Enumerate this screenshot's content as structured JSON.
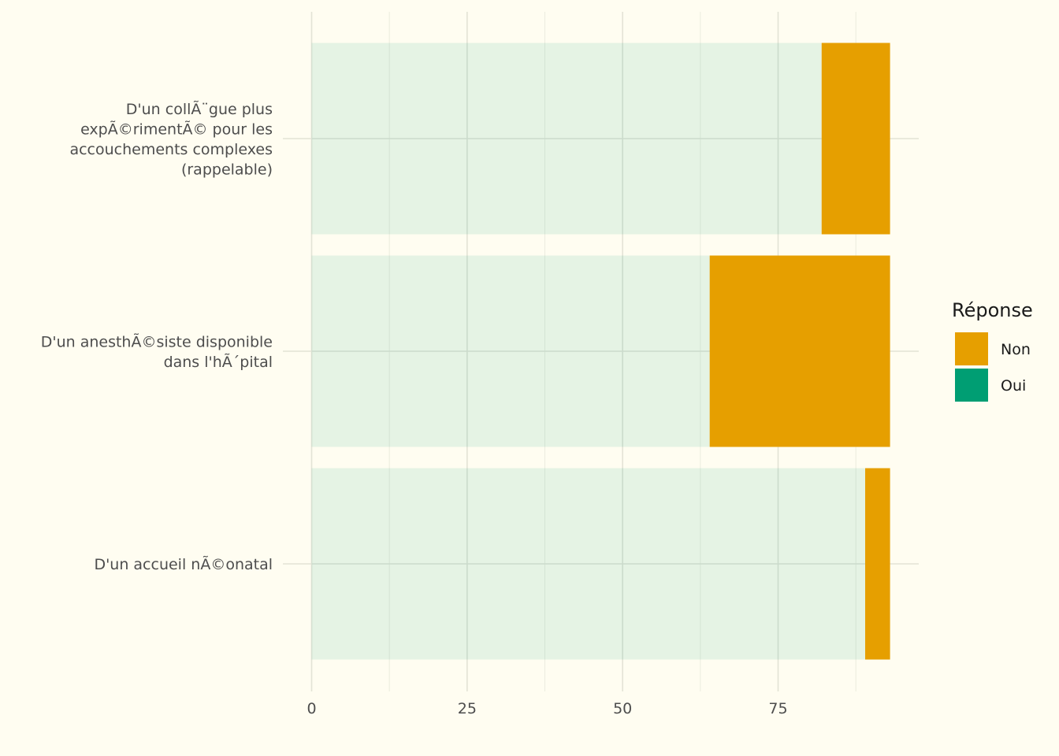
{
  "chart_data": {
    "type": "bar",
    "orientation": "horizontal",
    "stacked": true,
    "categories": [
      "D'un collÃ¨gue plus\nexpÃ©rimentÃ© pour les\naccouchements complexes\n(rappelable)",
      "D'un anesthÃ©siste disponible\ndans l'hÃ´pital",
      "D'un accueil nÃ©onatal"
    ],
    "series": [
      {
        "name": "Oui",
        "color": "#009e73",
        "opacity": 0.1,
        "values": [
          82,
          64,
          89
        ]
      },
      {
        "name": "Non",
        "color": "#e69f00",
        "opacity": 1,
        "values": [
          11,
          29,
          4
        ]
      }
    ],
    "xlim": [
      0,
      97
    ],
    "xticks": [
      0,
      25,
      50,
      75
    ],
    "grid": true,
    "legend": {
      "title": "Réponse",
      "position": "right",
      "items": [
        {
          "label": "Non",
          "color": "#e69f00"
        },
        {
          "label": "Oui",
          "color": "#009e73"
        }
      ]
    },
    "title": "",
    "xlabel": "",
    "ylabel": ""
  }
}
